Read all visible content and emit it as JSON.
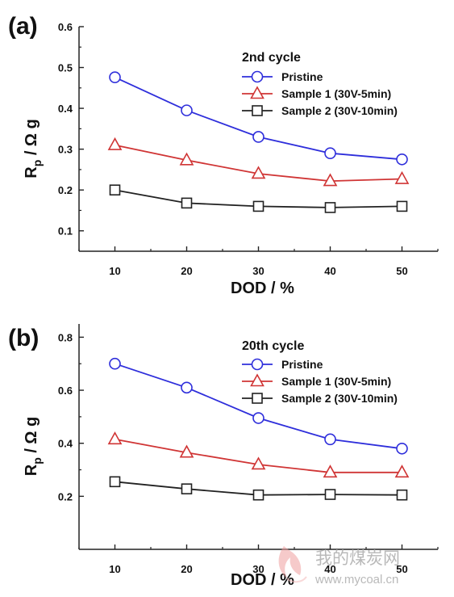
{
  "chart_data": [
    {
      "type": "line",
      "panel_label": "(a)",
      "legend_title": "2nd cycle",
      "x": [
        10,
        20,
        30,
        40,
        50
      ],
      "xlabel": "DOD / %",
      "ylabel_main": "R",
      "ylabel_sub": "p",
      "ylabel_rest": " / Ω g",
      "xlim": [
        5,
        55
      ],
      "ylim": [
        0.05,
        0.6
      ],
      "yticks": [
        0.1,
        0.2,
        0.3,
        0.4,
        0.5,
        0.6
      ],
      "ytick_labels": [
        "0.1",
        "0.2",
        "0.3",
        "0.4",
        "0.5",
        "0.6"
      ],
      "xtick_labels": [
        "10",
        "20",
        "30",
        "40",
        "50"
      ],
      "legend_position": "top-right",
      "series": [
        {
          "name": "Pristine",
          "color": "#2e2edb",
          "marker": "circle",
          "values": [
            0.476,
            0.395,
            0.33,
            0.29,
            0.275
          ]
        },
        {
          "name": "Sample 1 (30V-5min)",
          "color": "#d03535",
          "marker": "triangle",
          "values": [
            0.31,
            0.273,
            0.24,
            0.222,
            0.227
          ]
        },
        {
          "name": "Sample 2 (30V-10min)",
          "color": "#222222",
          "marker": "square",
          "values": [
            0.2,
            0.168,
            0.16,
            0.157,
            0.16
          ]
        }
      ]
    },
    {
      "type": "line",
      "panel_label": "(b)",
      "legend_title": "20th cycle",
      "x": [
        10,
        20,
        30,
        40,
        50
      ],
      "xlabel": "DOD / %",
      "ylabel_main": "R",
      "ylabel_sub": "p",
      "ylabel_rest": " / Ω g",
      "xlim": [
        5,
        55
      ],
      "ylim": [
        0.0,
        0.85
      ],
      "yticks": [
        0.2,
        0.4,
        0.6,
        0.8
      ],
      "ytick_labels": [
        "0.2",
        "0.4",
        "0.6",
        "0.8"
      ],
      "xtick_labels": [
        "10",
        "20",
        "30",
        "40",
        "50"
      ],
      "legend_position": "top-right",
      "series": [
        {
          "name": "Pristine",
          "color": "#2e2edb",
          "marker": "circle",
          "values": [
            0.7,
            0.61,
            0.495,
            0.415,
            0.38
          ]
        },
        {
          "name": "Sample 1 (30V-5min)",
          "color": "#d03535",
          "marker": "triangle",
          "values": [
            0.415,
            0.365,
            0.32,
            0.29,
            0.29
          ]
        },
        {
          "name": "Sample 2 (30V-10min)",
          "color": "#222222",
          "marker": "square",
          "values": [
            0.255,
            0.228,
            0.205,
            0.207,
            0.205
          ]
        }
      ]
    }
  ],
  "watermark": {
    "cn": "我的煤炭网",
    "url": "www.mycoal.cn"
  }
}
